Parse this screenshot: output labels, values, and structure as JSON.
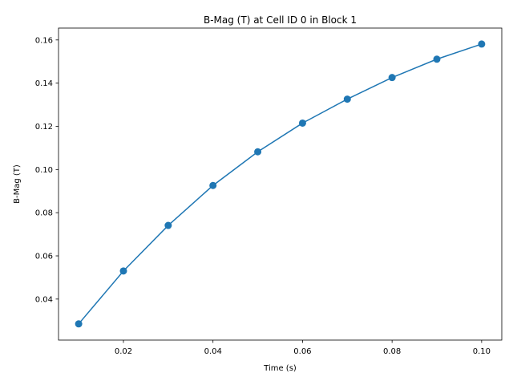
{
  "chart_data": {
    "type": "line",
    "title": "B-Mag (T) at Cell ID 0 in Block 1",
    "x_label": "Time (s)",
    "y_label": "B-Mag (T)",
    "x": [
      0.01,
      0.02,
      0.03,
      0.04,
      0.05,
      0.06,
      0.07,
      0.08,
      0.09,
      0.1
    ],
    "series": [
      {
        "name": "B-Mag (T)",
        "color": "#1f77b4",
        "values": [
          0.0285,
          0.053,
          0.0741,
          0.0926,
          0.1082,
          0.1215,
          0.1326,
          0.1426,
          0.1511,
          0.1581
        ]
      }
    ],
    "xlim": [
      0.0055,
      0.1045
    ],
    "xticks": [
      0.02,
      0.04,
      0.06,
      0.08,
      {
        "value": 0.1,
        "label": "0.10"
      }
    ],
    "ylim": [
      0.021,
      0.1655
    ],
    "yticks": [
      0.04,
      0.06,
      0.08,
      {
        "value": 0.1,
        "label": "0.10"
      },
      0.12,
      0.14,
      0.16
    ],
    "grid": false,
    "markers": true
  }
}
